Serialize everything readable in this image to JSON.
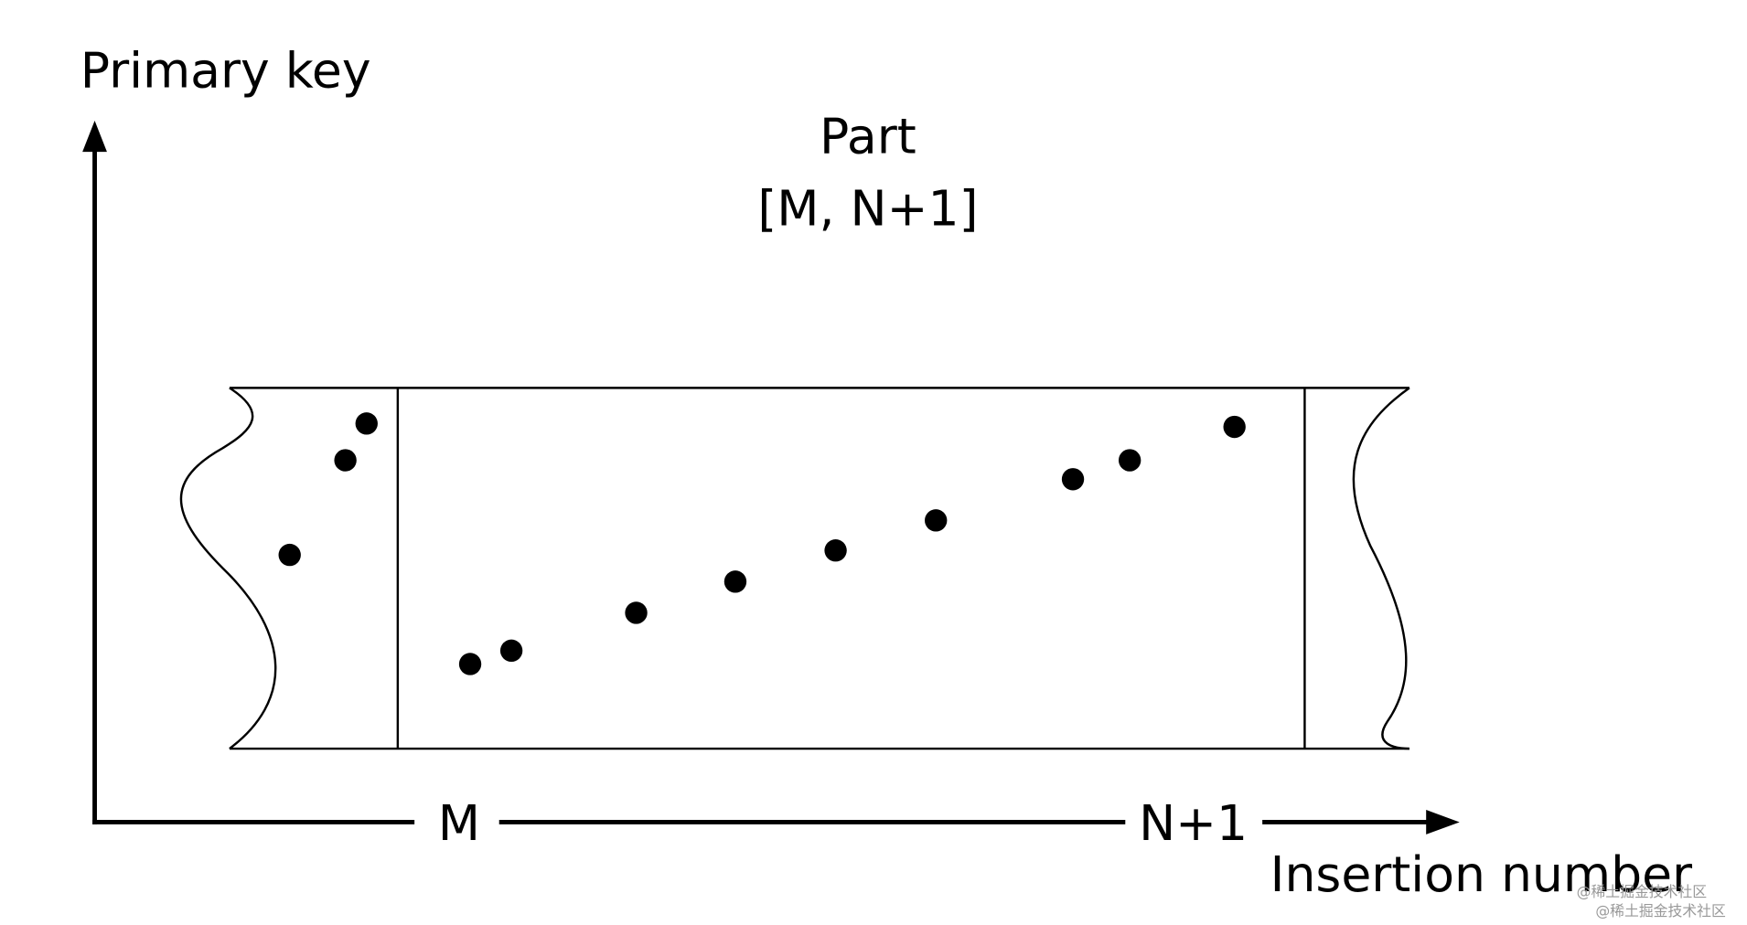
{
  "y_axis": {
    "label": "Primary key"
  },
  "part": {
    "title": "Part",
    "range": "[M, N+1]"
  },
  "x_axis": {
    "start": "M",
    "end": "N+1",
    "label": "Insertion number"
  },
  "watermark": [
    "@稀土掘金技术社区",
    "@稀土掘金技术社区"
  ]
}
